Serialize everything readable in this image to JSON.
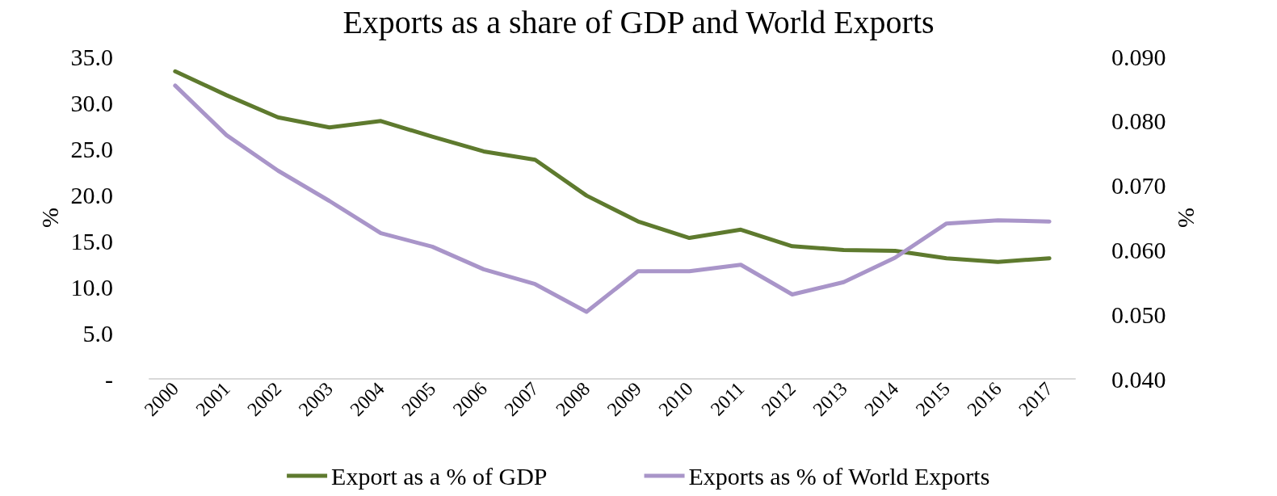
{
  "chart_data": {
    "type": "line",
    "title": "Exports as a share of GDP and World Exports",
    "categories": [
      "2000",
      "2001",
      "2002",
      "2003",
      "2004",
      "2005",
      "2006",
      "2007",
      "2008",
      "2009",
      "2010",
      "2011",
      "2012",
      "2013",
      "2014",
      "2015",
      "2016",
      "2017"
    ],
    "series": [
      {
        "name": "Export as a % of GDP",
        "color": "#5e7a2e",
        "values": [
          33.4,
          30.8,
          28.4,
          27.3,
          28.0,
          26.3,
          24.7,
          23.8,
          19.9,
          17.1,
          15.3,
          16.2,
          14.4,
          14.0,
          13.9,
          13.1,
          12.7,
          13.1
        ]
      },
      {
        "name": "Exports as % of World Exports",
        "color": "#a995c9",
        "axis": "y2",
        "values": [
          0.0855,
          0.0778,
          0.0723,
          0.0676,
          0.0626,
          0.0605,
          0.057,
          0.0547,
          0.0504,
          0.0567,
          0.0567,
          0.0577,
          0.0531,
          0.055,
          0.0588,
          0.0641,
          0.0646,
          0.0644
        ]
      }
    ],
    "ylabel": "%",
    "y2label": "%",
    "ylim": [
      0,
      35
    ],
    "yticks": [
      {
        "value": 0,
        "label": "-"
      },
      {
        "value": 5,
        "label": "5.0"
      },
      {
        "value": 10,
        "label": "10.0"
      },
      {
        "value": 15,
        "label": "15.0"
      },
      {
        "value": 20,
        "label": "20.0"
      },
      {
        "value": 25,
        "label": "25.0"
      },
      {
        "value": 30,
        "label": "30.0"
      },
      {
        "value": 35,
        "label": "35.0"
      }
    ],
    "y2lim": [
      0.04,
      0.09
    ],
    "y2ticks": [
      {
        "value": 0.04,
        "label": "0.040"
      },
      {
        "value": 0.05,
        "label": "0.050"
      },
      {
        "value": 0.06,
        "label": "0.060"
      },
      {
        "value": 0.07,
        "label": "0.070"
      },
      {
        "value": 0.08,
        "label": "0.080"
      },
      {
        "value": 0.09,
        "label": "0.090"
      }
    ],
    "grid": false,
    "legend": "bottom",
    "marker": "none",
    "line_style": "solid"
  }
}
